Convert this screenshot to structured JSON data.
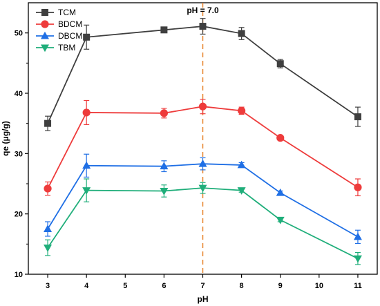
{
  "chart_data": {
    "type": "line",
    "xlabel": "pH",
    "ylabel": "qe (μg/g)",
    "xlim": [
      2.5,
      11.5
    ],
    "ylim": [
      10,
      55
    ],
    "xticks": [
      3,
      4,
      5,
      6,
      7,
      8,
      9,
      10,
      11
    ],
    "yticks": [
      10,
      20,
      30,
      40,
      50
    ],
    "grid": false,
    "legend_position": "top-left",
    "annotation": {
      "text": "pH = 7.0",
      "x": 7,
      "line_color": "#E8832A",
      "line_style": "dashed"
    },
    "series": [
      {
        "name": "TCM",
        "color": "#3F3F3F",
        "marker": "square",
        "x": [
          3,
          4,
          6,
          7,
          8,
          9,
          11
        ],
        "y": [
          35.0,
          49.3,
          50.5,
          51.1,
          49.9,
          44.9,
          36.1
        ],
        "err": [
          1.2,
          2.0,
          0.4,
          1.3,
          1.0,
          0.7,
          1.6
        ]
      },
      {
        "name": "BDCM",
        "color": "#EE3B3B",
        "marker": "circle",
        "x": [
          3,
          4,
          6,
          7,
          8,
          9,
          11
        ],
        "y": [
          24.2,
          36.8,
          36.7,
          37.8,
          37.1,
          32.6,
          24.4
        ],
        "err": [
          1.1,
          2.0,
          0.8,
          1.2,
          0.6,
          0.3,
          1.4
        ]
      },
      {
        "name": "DBCM",
        "color": "#1F6FE5",
        "marker": "triangle-up",
        "x": [
          3,
          4,
          6,
          7,
          8,
          9,
          11
        ],
        "y": [
          17.5,
          28.0,
          27.9,
          28.3,
          28.1,
          23.5,
          16.2
        ],
        "err": [
          1.2,
          1.9,
          0.9,
          1.0,
          0.4,
          0.3,
          1.1
        ]
      },
      {
        "name": "TBM",
        "color": "#1FAE7A",
        "marker": "triangle-down",
        "x": [
          3,
          4,
          6,
          7,
          8,
          9,
          11
        ],
        "y": [
          14.4,
          23.9,
          23.8,
          24.3,
          23.9,
          19.0,
          12.6
        ],
        "err": [
          1.3,
          1.9,
          1.0,
          0.9,
          0.3,
          0.3,
          1.0
        ]
      }
    ]
  }
}
